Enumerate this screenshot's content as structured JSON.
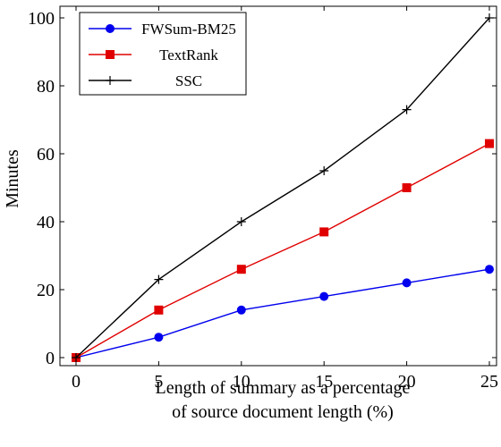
{
  "chart_data": {
    "type": "line",
    "x": [
      0,
      5,
      10,
      15,
      20,
      25
    ],
    "series": [
      {
        "name": "FWSum-BM25",
        "values": [
          0,
          6,
          14,
          18,
          22,
          26
        ],
        "color": "#0000ee",
        "marker": "circle"
      },
      {
        "name": "TextRank",
        "values": [
          0,
          14,
          26,
          37,
          50,
          63
        ],
        "color": "#e00000",
        "marker": "square"
      },
      {
        "name": "SSC",
        "values": [
          0,
          23,
          40,
          55,
          73,
          100
        ],
        "color": "#000000",
        "marker": "plus"
      }
    ],
    "xlabel_lines": [
      "Length of summary as a percentage",
      "of source document length (%)"
    ],
    "ylabel": "Minutes",
    "xlim": [
      0,
      25
    ],
    "ylim": [
      0,
      100
    ],
    "xticks": [
      0,
      5,
      10,
      15,
      20,
      25
    ],
    "yticks": [
      0,
      20,
      40,
      60,
      80,
      100
    ],
    "grid": false,
    "legend_position": "top-left"
  }
}
